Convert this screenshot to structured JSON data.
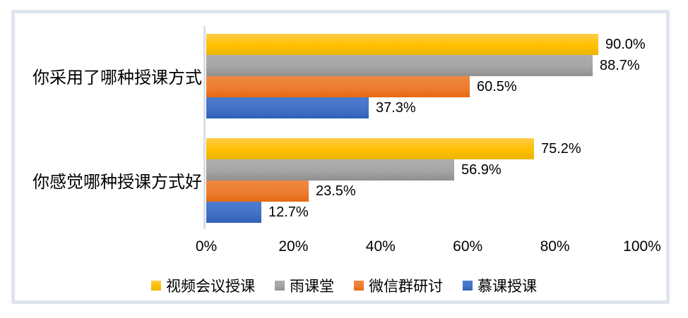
{
  "frame": {
    "border_color": "#dfe5ec",
    "axis_line_color": "#d8dee6"
  },
  "chart_data": {
    "type": "bar",
    "orientation": "horizontal",
    "title": "",
    "xlabel": "",
    "ylabel": "",
    "grid": false,
    "categories": [
      "你采用了哪种授课方式",
      "你感觉哪种授课方式好"
    ],
    "series": [
      {
        "name": "视频会议授课",
        "values": [
          90.0,
          75.2
        ],
        "labels": [
          "90.0%",
          "75.2%"
        ],
        "color": "#FFC000",
        "color_top": "#FFCC47",
        "color_bottom": "#ECB500"
      },
      {
        "name": "雨课堂",
        "values": [
          88.7,
          56.9
        ],
        "labels": [
          "88.7%",
          "56.9%"
        ],
        "color": "#A5A5A5",
        "color_top": "#AEAEAE",
        "color_bottom": "#909090"
      },
      {
        "name": "微信群研讨",
        "values": [
          60.5,
          23.5
        ],
        "labels": [
          "60.5%",
          "23.5%"
        ],
        "color": "#ED7D31",
        "color_top": "#F08942",
        "color_bottom": "#E56A10"
      },
      {
        "name": "慕课授课",
        "values": [
          37.3,
          12.7
        ],
        "labels": [
          "37.3%",
          "12.7%"
        ],
        "color": "#4472C4",
        "color_top": "#4C7CD0",
        "color_bottom": "#3060BA"
      }
    ],
    "x_axis": {
      "min": 0,
      "max": 100,
      "ticks": [
        "0%",
        "20%",
        "40%",
        "60%",
        "80%",
        "100%"
      ]
    },
    "legend": {
      "position": "bottom",
      "entries": [
        "视频会议授课",
        "雨课堂",
        "微信群研讨",
        "慕课授课"
      ]
    }
  }
}
